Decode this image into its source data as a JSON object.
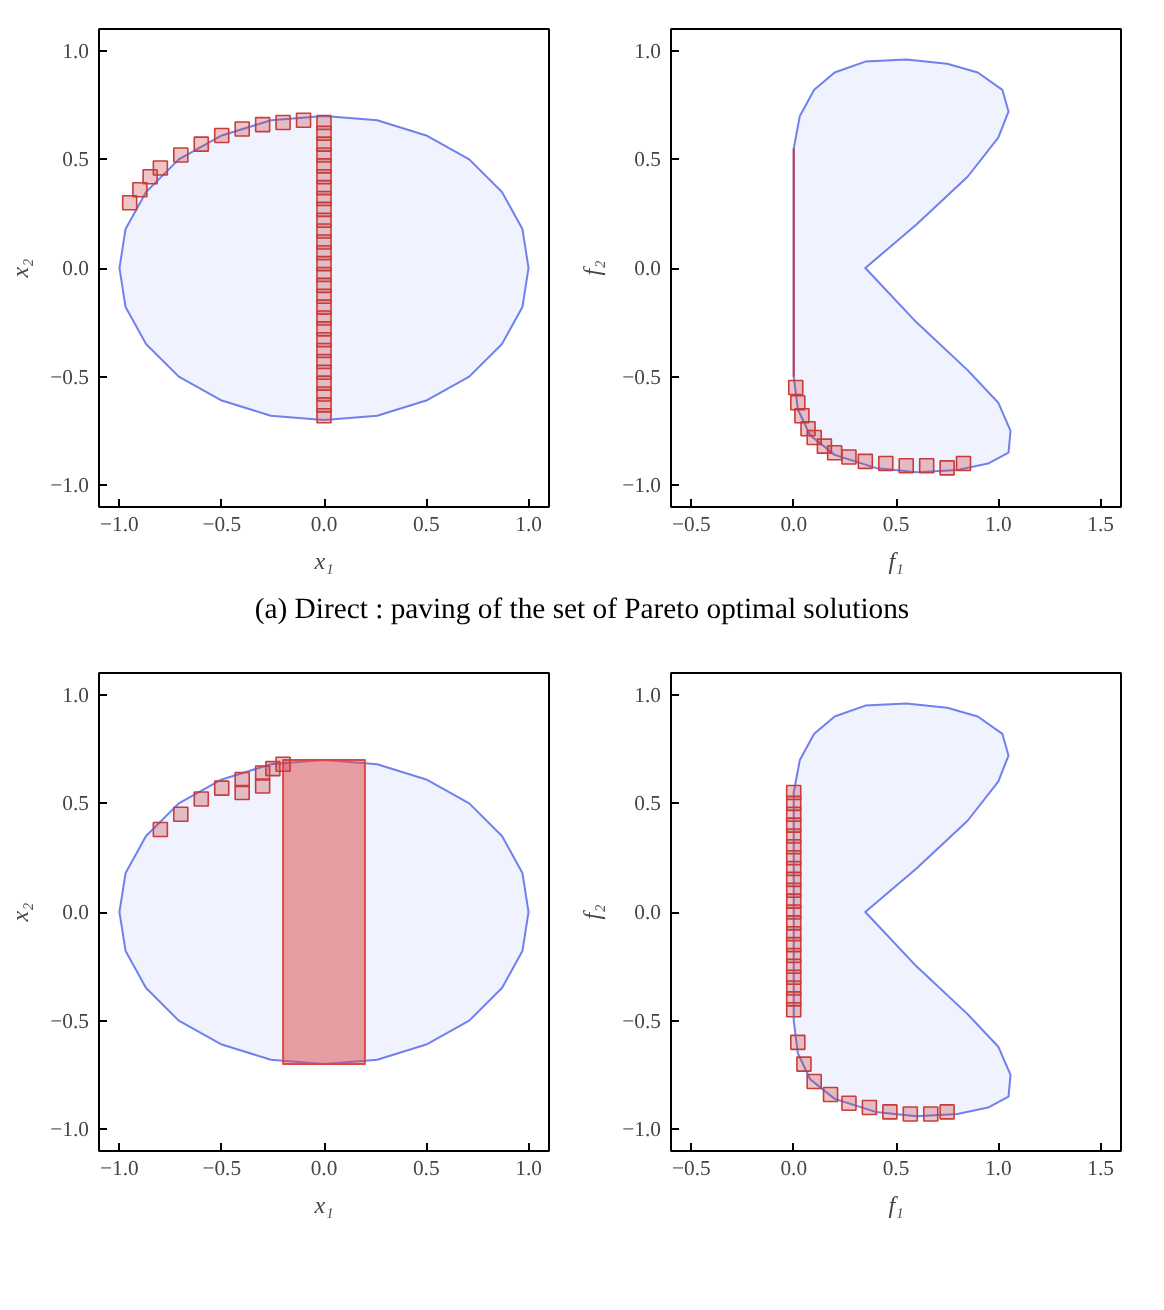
{
  "chart_data": [
    {
      "type": "area",
      "xlabel": "x₁",
      "ylabel": "x₂",
      "xlim": [
        -1.1,
        1.1
      ],
      "ylim": [
        -1.1,
        1.1
      ],
      "xticks": [
        {
          "value": -1.0,
          "label": "−1.0"
        },
        {
          "value": -0.5,
          "label": "−0.5"
        },
        {
          "value": 0,
          "label": "0.0"
        },
        {
          "value": 0.5,
          "label": "0.5"
        },
        {
          "value": 1.0,
          "label": "1.0"
        }
      ],
      "yticks": [
        {
          "value": -1.0,
          "label": "−1.0"
        },
        {
          "value": -0.5,
          "label": "−0.5"
        },
        {
          "value": 0,
          "label": "0.0"
        },
        {
          "value": 0.5,
          "label": "0.5"
        },
        {
          "value": 1.0,
          "label": "1.0"
        }
      ],
      "grid": false,
      "annotations": [
        "(a)  Direct : paving of the set of Pareto optimal solutions"
      ],
      "series": [
        {
          "color": "#7080ee",
          "x": [
            1,
            0.97,
            0.87,
            0.71,
            0.5,
            0.26,
            0,
            -0.26,
            -0.5,
            -0.71,
            -0.87,
            -0.97,
            -1,
            -0.97,
            -0.87,
            -0.71,
            -0.5,
            -0.26,
            0,
            0.26,
            0.5,
            0.71,
            0.87,
            0.97
          ],
          "values": [
            0,
            0.18,
            0.35,
            0.5,
            0.61,
            0.68,
            0.7,
            0.68,
            0.61,
            0.5,
            0.35,
            0.18,
            0,
            -0.18,
            -0.35,
            -0.5,
            -0.61,
            -0.68,
            -0.7,
            -0.68,
            -0.61,
            -0.5,
            -0.35,
            -0.18
          ]
        },
        {
          "type": "scatter",
          "marker": "square",
          "color": "#c83c3c",
          "x": [
            0,
            0,
            0,
            0,
            0,
            0,
            0,
            0,
            0,
            0,
            0,
            0,
            0,
            0,
            0,
            0,
            0,
            0,
            0,
            0,
            0,
            0,
            0,
            0,
            0,
            0,
            0,
            0,
            -0.95,
            -0.9,
            -0.85,
            -0.8,
            -0.7,
            -0.6,
            -0.5,
            -0.4,
            -0.3,
            -0.2,
            -0.1
          ],
          "values": [
            -0.68,
            -0.63,
            -0.58,
            -0.53,
            -0.48,
            -0.43,
            -0.38,
            -0.33,
            -0.28,
            -0.23,
            -0.18,
            -0.13,
            -0.08,
            -0.03,
            0.02,
            0.07,
            0.12,
            0.17,
            0.22,
            0.27,
            0.32,
            0.37,
            0.42,
            0.47,
            0.52,
            0.57,
            0.62,
            0.67,
            0.3,
            0.36,
            0.42,
            0.46,
            0.52,
            0.57,
            0.61,
            0.64,
            0.66,
            0.67,
            0.68
          ]
        }
      ]
    },
    {
      "type": "area",
      "xlabel": "f₁",
      "ylabel": "f₂",
      "xlim": [
        -0.6,
        1.6
      ],
      "ylim": [
        -1.1,
        1.1
      ],
      "xticks": [
        {
          "value": -0.5,
          "label": "−0.5"
        },
        {
          "value": 0,
          "label": "0.0"
        },
        {
          "value": 0.5,
          "label": "0.5"
        },
        {
          "value": 1.0,
          "label": "1.0"
        },
        {
          "value": 1.5,
          "label": "1.5"
        }
      ],
      "yticks": [
        {
          "value": -1.0,
          "label": "−1.0"
        },
        {
          "value": -0.5,
          "label": "−0.5"
        },
        {
          "value": 0,
          "label": "0.0"
        },
        {
          "value": 0.5,
          "label": "0.5"
        },
        {
          "value": 1.0,
          "label": "1.0"
        }
      ],
      "grid": false,
      "series": [
        {
          "color": "#7080ee",
          "x": [
            0,
            0.03,
            0.1,
            0.2,
            0.35,
            0.55,
            0.75,
            0.9,
            1.02,
            1.05,
            1.0,
            0.85,
            0.6,
            0.35,
            0.6,
            0.85,
            1.0,
            1.06,
            1.05,
            0.95,
            0.8,
            0.6,
            0.4,
            0.2,
            0.08,
            0.02,
            0
          ],
          "values": [
            0.55,
            0.7,
            0.82,
            0.9,
            0.95,
            0.96,
            0.94,
            0.9,
            0.82,
            0.72,
            0.6,
            0.42,
            0.2,
            0,
            -0.25,
            -0.47,
            -0.62,
            -0.75,
            -0.85,
            -0.9,
            -0.93,
            -0.94,
            -0.92,
            -0.86,
            -0.77,
            -0.65,
            -0.5
          ]
        },
        {
          "type": "line",
          "color": "#c83c3c",
          "x": [
            0,
            0
          ],
          "values": [
            -0.5,
            0.55
          ]
        },
        {
          "type": "scatter",
          "marker": "square",
          "color": "#c83c3c",
          "x": [
            0.01,
            0.02,
            0.04,
            0.07,
            0.1,
            0.15,
            0.2,
            0.27,
            0.35,
            0.45,
            0.55,
            0.65,
            0.75,
            0.83
          ],
          "values": [
            -0.55,
            -0.62,
            -0.68,
            -0.74,
            -0.78,
            -0.82,
            -0.85,
            -0.87,
            -0.89,
            -0.9,
            -0.91,
            -0.91,
            -0.92,
            -0.9
          ]
        }
      ]
    },
    {
      "type": "area",
      "xlabel": "x₁",
      "ylabel": "x₂",
      "xlim": [
        -1.1,
        1.1
      ],
      "ylim": [
        -1.1,
        1.1
      ],
      "xticks": [
        {
          "value": -1.0,
          "label": "−1.0"
        },
        {
          "value": -0.5,
          "label": "−0.5"
        },
        {
          "value": 0,
          "label": "0.0"
        },
        {
          "value": 0.5,
          "label": "0.5"
        },
        {
          "value": 1.0,
          "label": "1.0"
        }
      ],
      "yticks": [
        {
          "value": -1.0,
          "label": "−1.0"
        },
        {
          "value": -0.5,
          "label": "−0.5"
        },
        {
          "value": 0,
          "label": "0.0"
        },
        {
          "value": 0.5,
          "label": "0.5"
        },
        {
          "value": 1.0,
          "label": "1.0"
        }
      ],
      "grid": false,
      "series": [
        {
          "color": "#7080ee",
          "x": [
            1,
            0.97,
            0.87,
            0.71,
            0.5,
            0.26,
            0,
            -0.26,
            -0.5,
            -0.71,
            -0.87,
            -0.97,
            -1,
            -0.97,
            -0.87,
            -0.71,
            -0.5,
            -0.26,
            0,
            0.26,
            0.5,
            0.71,
            0.87,
            0.97
          ],
          "values": [
            0,
            0.18,
            0.35,
            0.5,
            0.61,
            0.68,
            0.7,
            0.68,
            0.61,
            0.5,
            0.35,
            0.18,
            0,
            -0.18,
            -0.35,
            -0.5,
            -0.61,
            -0.68,
            -0.7,
            -0.68,
            -0.61,
            -0.5,
            -0.35,
            -0.18
          ]
        },
        {
          "color": "#e04848",
          "x": [
            -0.2,
            0.2,
            0.2,
            -0.2
          ],
          "values": [
            -0.7,
            -0.7,
            0.7,
            0.7
          ]
        },
        {
          "type": "scatter",
          "marker": "square",
          "color": "#c83c3c",
          "x": [
            -0.8,
            -0.7,
            -0.6,
            -0.5,
            -0.4,
            -0.3,
            -0.25,
            -0.2,
            -0.3,
            -0.4
          ],
          "values": [
            0.38,
            0.45,
            0.52,
            0.57,
            0.61,
            0.64,
            0.66,
            0.68,
            0.58,
            0.55
          ]
        }
      ]
    },
    {
      "type": "area",
      "xlabel": "f₁",
      "ylabel": "f₂",
      "xlim": [
        -0.6,
        1.6
      ],
      "ylim": [
        -1.1,
        1.1
      ],
      "xticks": [
        {
          "value": -0.5,
          "label": "−0.5"
        },
        {
          "value": 0,
          "label": "0.0"
        },
        {
          "value": 0.5,
          "label": "0.5"
        },
        {
          "value": 1.0,
          "label": "1.0"
        },
        {
          "value": 1.5,
          "label": "1.5"
        }
      ],
      "yticks": [
        {
          "value": -1.0,
          "label": "−1.0"
        },
        {
          "value": -0.5,
          "label": "−0.5"
        },
        {
          "value": 0,
          "label": "0.0"
        },
        {
          "value": 0.5,
          "label": "0.5"
        },
        {
          "value": 1.0,
          "label": "1.0"
        }
      ],
      "grid": false,
      "series": [
        {
          "color": "#7080ee",
          "x": [
            0,
            0.03,
            0.1,
            0.2,
            0.35,
            0.55,
            0.75,
            0.9,
            1.02,
            1.05,
            1.0,
            0.85,
            0.6,
            0.35,
            0.6,
            0.85,
            1.0,
            1.06,
            1.05,
            0.95,
            0.8,
            0.6,
            0.4,
            0.2,
            0.08,
            0.02,
            0
          ],
          "values": [
            0.55,
            0.7,
            0.82,
            0.9,
            0.95,
            0.96,
            0.94,
            0.9,
            0.82,
            0.72,
            0.6,
            0.42,
            0.2,
            0,
            -0.25,
            -0.47,
            -0.62,
            -0.75,
            -0.85,
            -0.9,
            -0.93,
            -0.94,
            -0.92,
            -0.86,
            -0.77,
            -0.65,
            -0.5
          ]
        },
        {
          "type": "scatter",
          "marker": "square",
          "color": "#c83c3c",
          "x": [
            0,
            0,
            0,
            0,
            0,
            0,
            0,
            0,
            0,
            0,
            0,
            0,
            0,
            0,
            0,
            0,
            0,
            0,
            0,
            0,
            0,
            0.02,
            0.05,
            0.1,
            0.18,
            0.27,
            0.37,
            0.47,
            0.57,
            0.67,
            0.75
          ],
          "values": [
            -0.45,
            -0.4,
            -0.35,
            -0.3,
            -0.25,
            -0.2,
            -0.15,
            -0.1,
            -0.05,
            0,
            0.05,
            0.1,
            0.15,
            0.2,
            0.25,
            0.3,
            0.35,
            0.4,
            0.45,
            0.5,
            0.55,
            -0.6,
            -0.7,
            -0.78,
            -0.84,
            -0.88,
            -0.9,
            -0.92,
            -0.93,
            -0.93,
            -0.92
          ]
        }
      ]
    }
  ]
}
